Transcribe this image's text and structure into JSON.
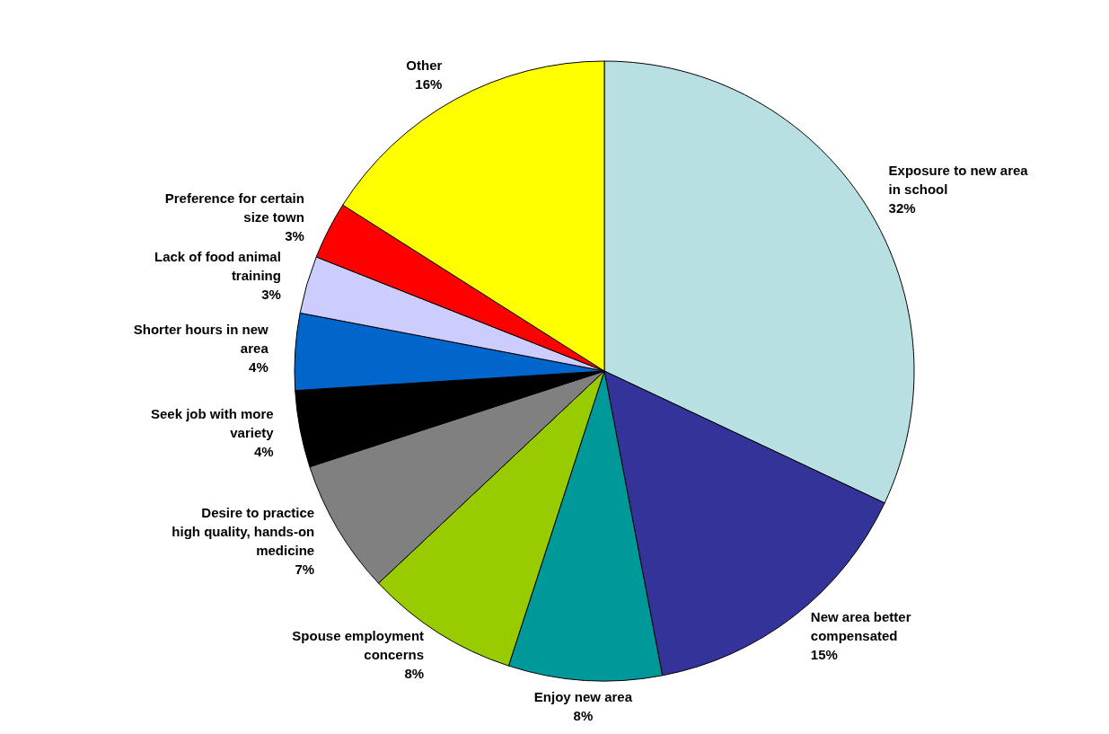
{
  "chart_data": {
    "type": "pie",
    "categories": [
      "Exposure to new area in school",
      "New area better compensated",
      "Enjoy new area",
      "Spouse employment concerns",
      "Desire to practice high quality, hands-on medicine",
      "Seek job with more variety",
      "Shorter hours in new area",
      "Lack of food animal training",
      "Preference for certain size town",
      "Other"
    ],
    "values": [
      32,
      15,
      8,
      8,
      7,
      4,
      4,
      3,
      3,
      16
    ],
    "value_labels": [
      "32%",
      "15%",
      "8%",
      "8%",
      "7%",
      "4%",
      "4%",
      "3%",
      "3%",
      "16%"
    ],
    "colors": [
      "#b8e0e3",
      "#333399",
      "#009999",
      "#99cc00",
      "#808080",
      "#000000",
      "#0066cc",
      "#ccccff",
      "#ff0000",
      "#ffff00"
    ]
  }
}
